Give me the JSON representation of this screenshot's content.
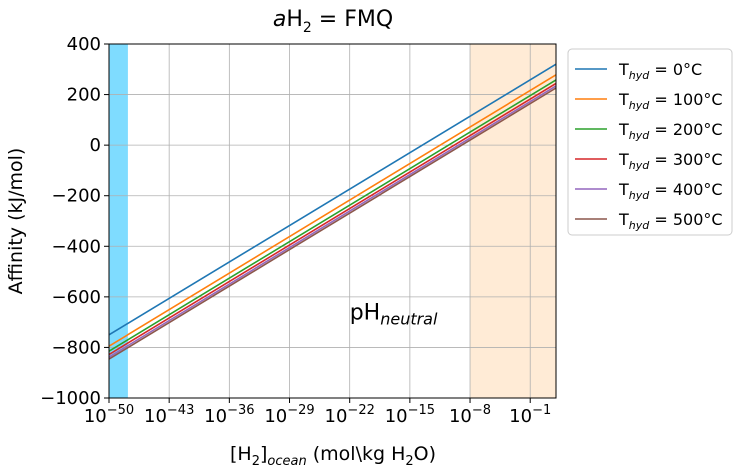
{
  "chart_data": {
    "type": "line",
    "title": {
      "prefix": "a",
      "main": "H",
      "sub": "2",
      "suffix": " = FMQ"
    },
    "xlabel": {
      "a": "[H",
      "a_sub": "2",
      "b": "]",
      "b_sub": "ocean",
      "c": " (mol\\kg H",
      "c_sub": "2",
      "d": "O)"
    },
    "ylabel": "Affinity (kJ/mol)",
    "xscale": "log10",
    "xlim": [
      -50,
      2
    ],
    "ylim": [
      -1000,
      400
    ],
    "xticks": [
      {
        "exp": -50,
        "label": "−50"
      },
      {
        "exp": -43,
        "label": "−43"
      },
      {
        "exp": -36,
        "label": "−36"
      },
      {
        "exp": -29,
        "label": "−29"
      },
      {
        "exp": -22,
        "label": "−22"
      },
      {
        "exp": -15,
        "label": "−15"
      },
      {
        "exp": -8,
        "label": "−8"
      },
      {
        "exp": -1,
        "label": "−1"
      }
    ],
    "xtick_base": "10",
    "yticks": [
      {
        "value": 400,
        "label": "400"
      },
      {
        "value": 200,
        "label": "200"
      },
      {
        "value": 0,
        "label": "0"
      },
      {
        "value": -200,
        "label": "−200"
      },
      {
        "value": -400,
        "label": "−400"
      },
      {
        "value": -600,
        "label": "−600"
      },
      {
        "value": -800,
        "label": "−800"
      },
      {
        "value": -1000,
        "label": "−1000"
      }
    ],
    "grid": true,
    "legend_position": "outside-right",
    "shaded_regions": [
      {
        "x_from": -50,
        "x_to": -47.8,
        "color": "#7fdcff"
      },
      {
        "x_from": -8,
        "x_to": 2,
        "color": "#ffebd6"
      }
    ],
    "annotation": {
      "main": "pH",
      "sub": "neutral",
      "x": -22,
      "y": -690
    },
    "series": [
      {
        "label_main": "T",
        "label_sub": "hyd",
        "label_rest": " = 0°C",
        "color": "#1f77b4",
        "points": [
          [
            -50,
            -750
          ],
          [
            2,
            320
          ]
        ]
      },
      {
        "label_main": "T",
        "label_sub": "hyd",
        "label_rest": " = 100°C",
        "color": "#ff7f0e",
        "points": [
          [
            -50,
            -795
          ],
          [
            2,
            278
          ]
        ]
      },
      {
        "label_main": "T",
        "label_sub": "hyd",
        "label_rest": " = 200°C",
        "color": "#2ca02c",
        "points": [
          [
            -50,
            -815
          ],
          [
            2,
            258
          ]
        ]
      },
      {
        "label_main": "T",
        "label_sub": "hyd",
        "label_rest": " = 300°C",
        "color": "#d62728",
        "points": [
          [
            -50,
            -828
          ],
          [
            2,
            244
          ]
        ]
      },
      {
        "label_main": "T",
        "label_sub": "hyd",
        "label_rest": " = 400°C",
        "color": "#9467bd",
        "points": [
          [
            -50,
            -838
          ],
          [
            2,
            234
          ]
        ]
      },
      {
        "label_main": "T",
        "label_sub": "hyd",
        "label_rest": " = 500°C",
        "color": "#8c564b",
        "points": [
          [
            -50,
            -846
          ],
          [
            2,
            226
          ]
        ]
      }
    ]
  }
}
